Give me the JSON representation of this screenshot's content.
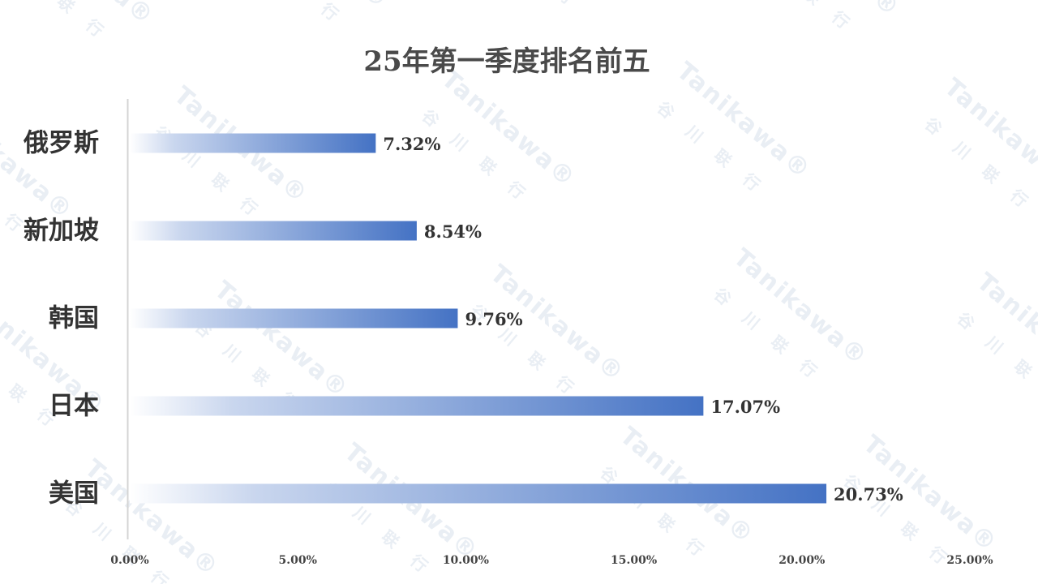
{
  "watermark": {
    "brand": "Tanikawa",
    "registered": "®",
    "chinese": "谷川联行"
  },
  "chart_data": {
    "type": "bar",
    "orientation": "horizontal",
    "title": "25年第一季度排名前五",
    "xlabel": "",
    "ylabel": "",
    "categories": [
      "俄罗斯",
      "新加坡",
      "韩国",
      "日本",
      "美国"
    ],
    "values": [
      7.32,
      8.54,
      9.76,
      17.07,
      20.73
    ],
    "value_labels": [
      "7.32%",
      "8.54%",
      "9.76%",
      "17.07%",
      "20.73%"
    ],
    "xlim": [
      0,
      25
    ],
    "xticks": [
      0,
      5,
      10,
      15,
      20,
      25
    ],
    "xtick_labels": [
      "0.00%",
      "5.00%",
      "10.00%",
      "15.00%",
      "20.00%",
      "25.00%"
    ],
    "grid": false,
    "legend": "none",
    "bar_color_start": "#ffffff",
    "bar_color_end": "#4472c4"
  }
}
